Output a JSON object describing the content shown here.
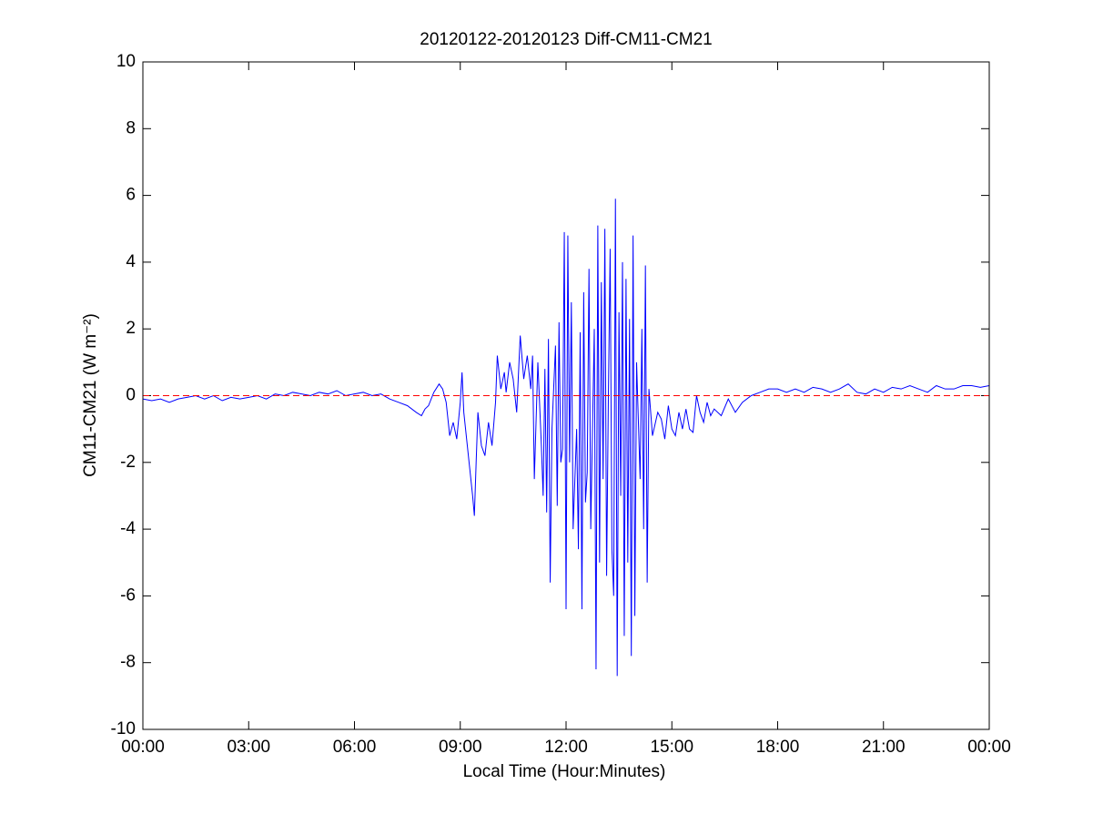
{
  "chart_data": {
    "type": "line",
    "title": "20120122-20120123 Diff-CM11-CM21",
    "x_label": "Local Time (Hour:Minutes)",
    "y_label": "CM11-CM21 (W m⁻²)",
    "xlim": [
      0,
      24
    ],
    "ylim": [
      -10,
      10
    ],
    "xticks": [
      {
        "value": 0,
        "label": "00:00"
      },
      {
        "value": 3,
        "label": "03:00"
      },
      {
        "value": 6,
        "label": "06:00"
      },
      {
        "value": 9,
        "label": "09:00"
      },
      {
        "value": 12,
        "label": "12:00"
      },
      {
        "value": 15,
        "label": "15:00"
      },
      {
        "value": 18,
        "label": "18:00"
      },
      {
        "value": 21,
        "label": "21:00"
      },
      {
        "value": 24,
        "label": "00:00"
      }
    ],
    "yticks": [
      -10,
      -8,
      -6,
      -4,
      -2,
      0,
      2,
      4,
      6,
      8,
      10
    ],
    "grid": false,
    "reference_line": {
      "value": 0,
      "color": "#ff0000",
      "style": "dashed"
    },
    "x": [
      0,
      0.25,
      0.5,
      0.75,
      1,
      1.25,
      1.5,
      1.75,
      2,
      2.25,
      2.5,
      2.75,
      3,
      3.25,
      3.5,
      3.75,
      4,
      4.25,
      4.5,
      4.75,
      5,
      5.25,
      5.5,
      5.75,
      6,
      6.25,
      6.5,
      6.75,
      7,
      7.25,
      7.5,
      7.75,
      7.9,
      8,
      8.1,
      8.25,
      8.4,
      8.5,
      8.6,
      8.7,
      8.8,
      8.9,
      9,
      9.05,
      9.1,
      9.2,
      9.3,
      9.35,
      9.4,
      9.45,
      9.5,
      9.6,
      9.7,
      9.8,
      9.9,
      10,
      10.05,
      10.15,
      10.25,
      10.3,
      10.4,
      10.5,
      10.6,
      10.7,
      10.8,
      10.9,
      11,
      11.05,
      11.1,
      11.2,
      11.3,
      11.35,
      11.4,
      11.45,
      11.5,
      11.55,
      11.6,
      11.7,
      11.75,
      11.8,
      11.85,
      11.9,
      11.95,
      12,
      12.05,
      12.1,
      12.15,
      12.2,
      12.3,
      12.35,
      12.4,
      12.45,
      12.5,
      12.55,
      12.6,
      12.65,
      12.7,
      12.8,
      12.85,
      12.9,
      12.95,
      13,
      13.05,
      13.1,
      13.15,
      13.2,
      13.25,
      13.3,
      13.35,
      13.4,
      13.45,
      13.5,
      13.55,
      13.6,
      13.65,
      13.7,
      13.75,
      13.8,
      13.85,
      13.9,
      13.95,
      14,
      14.1,
      14.15,
      14.2,
      14.25,
      14.3,
      14.35,
      14.45,
      14.6,
      14.7,
      14.8,
      14.9,
      15,
      15.1,
      15.2,
      15.3,
      15.4,
      15.5,
      15.6,
      15.7,
      15.8,
      15.9,
      16,
      16.1,
      16.2,
      16.4,
      16.6,
      16.8,
      17,
      17.25,
      17.5,
      17.75,
      18,
      18.25,
      18.5,
      18.75,
      19,
      19.25,
      19.5,
      19.75,
      20,
      20.25,
      20.5,
      20.75,
      21,
      21.25,
      21.5,
      21.75,
      22,
      22.25,
      22.5,
      22.75,
      23,
      23.25,
      23.5,
      23.75,
      24
    ],
    "series": [
      {
        "color": "#0000ff",
        "values": [
          -0.1,
          -0.15,
          -0.1,
          -0.2,
          -0.1,
          -0.05,
          0,
          -0.1,
          0,
          -0.15,
          -0.05,
          -0.1,
          -0.05,
          0,
          -0.1,
          0.05,
          0,
          0.1,
          0.05,
          0,
          0.1,
          0.05,
          0.15,
          0,
          0.05,
          0.1,
          0,
          0.05,
          -0.1,
          -0.2,
          -0.3,
          -0.5,
          -0.6,
          -0.4,
          -0.3,
          0.1,
          0.35,
          0.2,
          -0.2,
          -1.2,
          -0.8,
          -1.3,
          -0.2,
          0.7,
          -0.5,
          -1.5,
          -2.5,
          -3,
          -3.6,
          -2,
          -0.5,
          -1.5,
          -1.8,
          -0.8,
          -1.5,
          -0.2,
          1.2,
          0.2,
          0.7,
          0.1,
          1,
          0.5,
          -0.5,
          1.8,
          0.5,
          1.2,
          0.2,
          1.2,
          -2.5,
          1,
          -1.5,
          -3,
          0.8,
          -3.5,
          1.7,
          -5.6,
          -1,
          1.5,
          -3.3,
          2.2,
          -2,
          -1.6,
          4.9,
          -6.4,
          4.8,
          -2,
          2.8,
          -4,
          -1,
          -4.6,
          1.9,
          -6.4,
          3.1,
          -3.2,
          -2.3,
          3.8,
          -4,
          2,
          -8.2,
          5.1,
          -5,
          3.4,
          -2.5,
          5,
          -5.4,
          0,
          4.4,
          -4.6,
          -6,
          5.9,
          -8.4,
          2.5,
          -3,
          4,
          -7.2,
          3.5,
          -5,
          2.3,
          -7.8,
          4.8,
          -6.6,
          1,
          -2.5,
          2,
          -4,
          3.9,
          -5.6,
          0.2,
          -1.2,
          -0.5,
          -0.7,
          -1.3,
          -0.3,
          -1,
          -1.2,
          -0.5,
          -1,
          -0.4,
          -1,
          -1.1,
          0,
          -0.5,
          -0.8,
          -0.2,
          -0.6,
          -0.4,
          -0.6,
          -0.1,
          -0.5,
          -0.2,
          0,
          0.1,
          0.2,
          0.2,
          0.1,
          0.2,
          0.1,
          0.25,
          0.2,
          0.1,
          0.2,
          0.35,
          0.1,
          0.05,
          0.2,
          0.1,
          0.25,
          0.2,
          0.3,
          0.2,
          0.1,
          0.3,
          0.2,
          0.2,
          0.3,
          0.3,
          0.25,
          0.3
        ]
      }
    ]
  }
}
